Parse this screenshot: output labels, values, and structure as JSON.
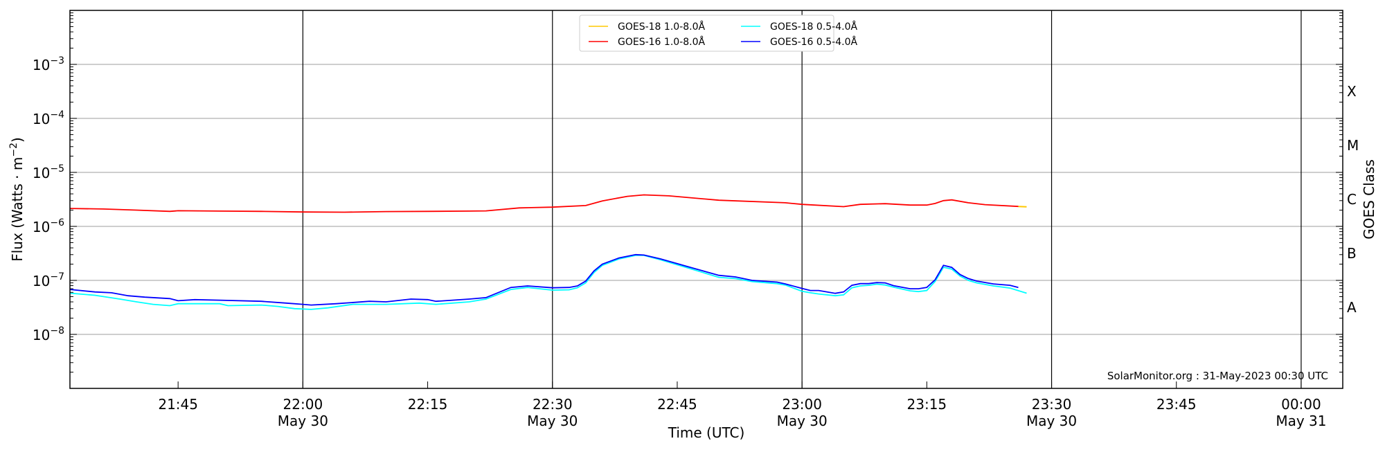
{
  "chart_data": {
    "type": "line",
    "xlabel": "Time (UTC)",
    "ylabel": "Flux (Watts · m",
    "ylabel_sup": "−2",
    "ylabel_close": ")",
    "right_label": "GOES Class",
    "yscale": "log",
    "ylim": [
      1e-09,
      0.01
    ],
    "xlim": [
      "21:32",
      "00:05"
    ],
    "grid": "horizontal at decades; vertical black lines every 30 min",
    "legend_placement": "top-center",
    "credit": "SolarMonitor.org : 31-May-2023 00:30 UTC",
    "y_ticks": [
      {
        "base": "10",
        "exp": "−3",
        "value": 0.001
      },
      {
        "base": "10",
        "exp": "−4",
        "value": 0.0001
      },
      {
        "base": "10",
        "exp": "−5",
        "value": 1e-05
      },
      {
        "base": "10",
        "exp": "−6",
        "value": 1e-06
      },
      {
        "base": "10",
        "exp": "−7",
        "value": 1e-07
      },
      {
        "base": "10",
        "exp": "−8",
        "value": 1e-08
      }
    ],
    "x_ticks": [
      {
        "time": "21:45",
        "label": "21:45",
        "date": ""
      },
      {
        "time": "22:00",
        "label": "22:00",
        "date": "May 30"
      },
      {
        "time": "22:15",
        "label": "22:15",
        "date": ""
      },
      {
        "time": "22:30",
        "label": "22:30",
        "date": "May 30"
      },
      {
        "time": "22:45",
        "label": "22:45",
        "date": ""
      },
      {
        "time": "23:00",
        "label": "23:00",
        "date": "May 30"
      },
      {
        "time": "23:15",
        "label": "23:15",
        "date": ""
      },
      {
        "time": "23:30",
        "label": "23:30",
        "date": "May 30"
      },
      {
        "time": "23:45",
        "label": "23:45",
        "date": ""
      },
      {
        "time": "24:00",
        "label": "00:00",
        "date": "May 31"
      }
    ],
    "goes_classes": [
      {
        "label": "X",
        "log": -3.5
      },
      {
        "label": "M",
        "log": -4.5
      },
      {
        "label": "C",
        "log": -5.5
      },
      {
        "label": "B",
        "log": -6.5
      },
      {
        "label": "A",
        "log": -7.5
      }
    ],
    "series": [
      {
        "name": "GOES-18 1.0-8.0Å",
        "color": "#ffc800",
        "t": [
          "23:26",
          "23:27"
        ],
        "values": [
          2.34e-06,
          2.3e-06
        ]
      },
      {
        "name": "GOES-16 1.0-8.0Å",
        "color": "#ff0000",
        "t": [
          "21:32",
          "21:36",
          "21:40",
          "21:44",
          "21:45",
          "21:50",
          "21:55",
          "22:00",
          "22:05",
          "22:10",
          "22:15",
          "22:20",
          "22:22",
          "22:26",
          "22:30",
          "22:34",
          "22:36",
          "22:39",
          "22:41",
          "22:44",
          "22:50",
          "22:58",
          "23:00",
          "23:05",
          "23:07",
          "23:10",
          "23:13",
          "23:15",
          "23:16",
          "23:17",
          "23:18",
          "23:20",
          "23:22",
          "23:26"
        ],
        "values": [
          2.15e-06,
          2.1e-06,
          2e-06,
          1.9e-06,
          1.95e-06,
          1.92e-06,
          1.9e-06,
          1.85e-06,
          1.83e-06,
          1.88e-06,
          1.9e-06,
          1.92e-06,
          1.94e-06,
          2.2e-06,
          2.27e-06,
          2.43e-06,
          2.96e-06,
          3.6e-06,
          3.83e-06,
          3.68e-06,
          3.05e-06,
          2.74e-06,
          2.56e-06,
          2.32e-06,
          2.56e-06,
          2.63e-06,
          2.48e-06,
          2.48e-06,
          2.66e-06,
          3e-06,
          3.1e-06,
          2.74e-06,
          2.53e-06,
          2.34e-06
        ]
      },
      {
        "name": "GOES-18 0.5-4.0Å",
        "color": "#00ffff",
        "t": [
          "21:32",
          "21:35",
          "21:38",
          "21:40",
          "21:42",
          "21:44",
          "21:45",
          "21:50",
          "21:51",
          "21:55",
          "21:57",
          "21:59",
          "22:01",
          "22:03",
          "22:06",
          "22:10",
          "22:14",
          "22:16",
          "22:20",
          "22:22",
          "22:25",
          "22:27",
          "22:30",
          "22:32",
          "22:33",
          "22:34",
          "22:35",
          "22:36",
          "22:38",
          "22:40",
          "22:41",
          "22:43",
          "22:46",
          "22:47",
          "22:50",
          "22:52",
          "22:54",
          "22:57",
          "22:58",
          "23:00",
          "23:01",
          "23:02",
          "23:04",
          "23:05",
          "23:06",
          "23:07",
          "23:08",
          "23:09",
          "23:10",
          "23:11",
          "23:13",
          "23:14",
          "23:15",
          "23:16",
          "23:17",
          "23:18",
          "23:19",
          "23:20",
          "23:21",
          "23:23",
          "23:25",
          "23:27"
        ],
        "values": [
          5.8e-08,
          5.3e-08,
          4.5e-08,
          4e-08,
          3.6e-08,
          3.4e-08,
          3.7e-08,
          3.7e-08,
          3.4e-08,
          3.5e-08,
          3.3e-08,
          3e-08,
          2.9e-08,
          3.1e-08,
          3.6e-08,
          3.6e-08,
          3.8e-08,
          3.6e-08,
          4e-08,
          4.5e-08,
          6.8e-08,
          7.4e-08,
          6.6e-08,
          6.7e-08,
          7.3e-08,
          9e-08,
          1.4e-07,
          1.9e-07,
          2.5e-07,
          2.9e-07,
          2.9e-07,
          2.4e-07,
          1.75e-07,
          1.57e-07,
          1.14e-07,
          1.08e-07,
          9.5e-08,
          8.7e-08,
          8.2e-08,
          6.3e-08,
          5.9e-08,
          5.6e-08,
          5.2e-08,
          5.4e-08,
          7.3e-08,
          7.9e-08,
          8.1e-08,
          8.5e-08,
          8.2e-08,
          7.5e-08,
          6.4e-08,
          6.2e-08,
          6.5e-08,
          9.6e-08,
          1.75e-07,
          1.62e-07,
          1.2e-07,
          1e-07,
          9e-08,
          7.9e-08,
          7.2e-08,
          5.8e-08
        ]
      },
      {
        "name": "GOES-16 0.5-4.0Å",
        "color": "#0000ff",
        "t": [
          "21:32",
          "21:35",
          "21:37",
          "21:39",
          "21:41",
          "21:44",
          "21:45",
          "21:47",
          "21:50",
          "21:55",
          "21:58",
          "22:00",
          "22:01",
          "22:04",
          "22:08",
          "22:10",
          "22:13",
          "22:15",
          "22:16",
          "22:20",
          "22:22",
          "22:25",
          "22:27",
          "22:30",
          "22:32",
          "22:33",
          "22:34",
          "22:35",
          "22:36",
          "22:38",
          "22:40",
          "22:41",
          "22:43",
          "22:46",
          "22:47",
          "22:50",
          "22:52",
          "22:54",
          "22:57",
          "22:58",
          "23:00",
          "23:01",
          "23:02",
          "23:04",
          "23:05",
          "23:06",
          "23:07",
          "23:08",
          "23:09",
          "23:10",
          "23:11",
          "23:13",
          "23:14",
          "23:15",
          "23:16",
          "23:17",
          "23:18",
          "23:19",
          "23:20",
          "23:21",
          "23:23",
          "23:25",
          "23:26"
        ],
        "values": [
          6.8e-08,
          6.1e-08,
          5.9e-08,
          5.2e-08,
          4.9e-08,
          4.6e-08,
          4.2e-08,
          4.4e-08,
          4.3e-08,
          4.1e-08,
          3.8e-08,
          3.6e-08,
          3.5e-08,
          3.7e-08,
          4.1e-08,
          4e-08,
          4.5e-08,
          4.4e-08,
          4.1e-08,
          4.5e-08,
          4.8e-08,
          7.4e-08,
          7.9e-08,
          7.3e-08,
          7.4e-08,
          7.9e-08,
          9.7e-08,
          1.5e-07,
          2e-07,
          2.6e-07,
          3e-07,
          2.95e-07,
          2.5e-07,
          1.85e-07,
          1.67e-07,
          1.24e-07,
          1.16e-07,
          1e-07,
          9.3e-08,
          8.6e-08,
          7.1e-08,
          6.5e-08,
          6.5e-08,
          5.75e-08,
          6.1e-08,
          8.1e-08,
          8.7e-08,
          8.7e-08,
          9.1e-08,
          9e-08,
          8e-08,
          7e-08,
          7e-08,
          7.4e-08,
          1.03e-07,
          1.9e-07,
          1.74e-07,
          1.28e-07,
          1.08e-07,
          9.7e-08,
          8.6e-08,
          8.1e-08,
          7.4e-08
        ]
      }
    ]
  }
}
